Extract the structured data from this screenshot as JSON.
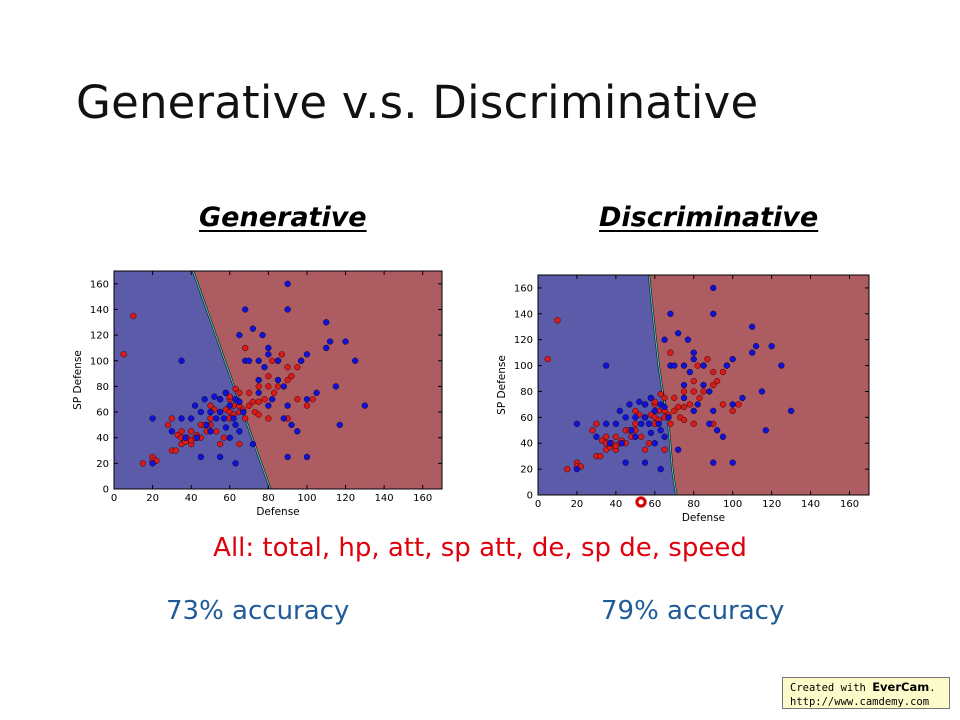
{
  "slide": {
    "title": "Generative v.s. Discriminative",
    "left_heading": "Generative",
    "right_heading": "Discriminative",
    "features_line": "All: total, hp, att, sp att, de, sp de, speed",
    "left_accuracy": "73% accuracy",
    "right_accuracy": "79% accuracy"
  },
  "watermark": {
    "prefix": "Created with ",
    "brand": "EverCam",
    "suffix": ".",
    "url": "http://www.camdemy.com"
  },
  "colors": {
    "class_red": "#d81b1b",
    "class_blue": "#1212d6",
    "region_blue": "#5b5baa",
    "region_red": "#ad5d61",
    "features_text": "#e0000c",
    "accuracy_text": "#1f5a99"
  },
  "shared_points": {
    "red": [
      [
        5,
        105
      ],
      [
        10,
        135
      ],
      [
        15,
        20
      ],
      [
        20,
        25
      ],
      [
        20,
        22
      ],
      [
        22,
        22
      ],
      [
        28,
        50
      ],
      [
        30,
        55
      ],
      [
        30,
        30
      ],
      [
        32,
        30
      ],
      [
        33,
        42
      ],
      [
        35,
        45
      ],
      [
        35,
        40
      ],
      [
        35,
        35
      ],
      [
        37,
        37
      ],
      [
        38,
        40
      ],
      [
        40,
        35
      ],
      [
        40,
        45
      ],
      [
        40,
        38
      ],
      [
        42,
        40
      ],
      [
        43,
        42
      ],
      [
        45,
        50
      ],
      [
        45,
        40
      ],
      [
        47,
        50
      ],
      [
        48,
        45
      ],
      [
        50,
        50
      ],
      [
        50,
        65
      ],
      [
        50,
        55
      ],
      [
        52,
        62
      ],
      [
        53,
        45
      ],
      [
        55,
        60
      ],
      [
        55,
        70
      ],
      [
        55,
        35
      ],
      [
        57,
        40
      ],
      [
        58,
        62
      ],
      [
        58,
        75
      ],
      [
        60,
        70
      ],
      [
        60,
        55
      ],
      [
        60,
        60
      ],
      [
        60,
        72
      ],
      [
        62,
        65
      ],
      [
        62,
        58
      ],
      [
        63,
        78
      ],
      [
        65,
        75
      ],
      [
        65,
        65
      ],
      [
        65,
        60
      ],
      [
        65,
        35
      ],
      [
        67,
        62
      ],
      [
        68,
        55
      ],
      [
        68,
        110
      ],
      [
        70,
        65
      ],
      [
        70,
        75
      ],
      [
        72,
        68
      ],
      [
        73,
        60
      ],
      [
        75,
        58
      ],
      [
        75,
        68
      ],
      [
        75,
        80
      ],
      [
        78,
        70
      ],
      [
        80,
        55
      ],
      [
        80,
        80
      ],
      [
        80,
        88
      ],
      [
        82,
        100
      ],
      [
        83,
        75
      ],
      [
        85,
        80
      ],
      [
        85,
        100
      ],
      [
        87,
        105
      ],
      [
        90,
        95
      ],
      [
        90,
        85
      ],
      [
        90,
        55
      ],
      [
        92,
        88
      ],
      [
        95,
        70
      ],
      [
        95,
        95
      ],
      [
        97,
        100
      ],
      [
        100,
        65
      ],
      [
        103,
        70
      ]
    ],
    "blue": [
      [
        20,
        55
      ],
      [
        20,
        20
      ],
      [
        30,
        45
      ],
      [
        35,
        100
      ],
      [
        35,
        55
      ],
      [
        37,
        40
      ],
      [
        40,
        55
      ],
      [
        42,
        65
      ],
      [
        43,
        40
      ],
      [
        45,
        25
      ],
      [
        45,
        60
      ],
      [
        47,
        70
      ],
      [
        48,
        50
      ],
      [
        50,
        60
      ],
      [
        50,
        45
      ],
      [
        52,
        72
      ],
      [
        53,
        55
      ],
      [
        55,
        25
      ],
      [
        55,
        60
      ],
      [
        55,
        70
      ],
      [
        57,
        55
      ],
      [
        58,
        48
      ],
      [
        58,
        75
      ],
      [
        60,
        40
      ],
      [
        60,
        65
      ],
      [
        62,
        55
      ],
      [
        63,
        50
      ],
      [
        63,
        70
      ],
      [
        63,
        20
      ],
      [
        65,
        120
      ],
      [
        65,
        45
      ],
      [
        65,
        68
      ],
      [
        67,
        60
      ],
      [
        68,
        140
      ],
      [
        68,
        100
      ],
      [
        70,
        100
      ],
      [
        72,
        125
      ],
      [
        72,
        35
      ],
      [
        75,
        75
      ],
      [
        75,
        100
      ],
      [
        75,
        85
      ],
      [
        77,
        120
      ],
      [
        78,
        95
      ],
      [
        80,
        65
      ],
      [
        80,
        110
      ],
      [
        80,
        105
      ],
      [
        82,
        70
      ],
      [
        85,
        85
      ],
      [
        85,
        100
      ],
      [
        88,
        55
      ],
      [
        88,
        80
      ],
      [
        90,
        160
      ],
      [
        90,
        140
      ],
      [
        90,
        65
      ],
      [
        90,
        25
      ],
      [
        92,
        50
      ],
      [
        95,
        45
      ],
      [
        97,
        100
      ],
      [
        100,
        105
      ],
      [
        100,
        25
      ],
      [
        100,
        70
      ],
      [
        105,
        75
      ],
      [
        110,
        130
      ],
      [
        110,
        110
      ],
      [
        112,
        115
      ],
      [
        115,
        80
      ],
      [
        117,
        50
      ],
      [
        120,
        115
      ],
      [
        125,
        100
      ],
      [
        130,
        65
      ]
    ]
  },
  "chart_data": [
    {
      "type": "scatter",
      "xlabel": "Defense",
      "ylabel": "SP Defense",
      "xlim": [
        0,
        170
      ],
      "ylim": [
        0,
        170
      ],
      "xticks": [
        "0",
        "20",
        "40",
        "60",
        "80",
        "100",
        "120",
        "140",
        "160"
      ],
      "yticks": [
        "0",
        "20",
        "40",
        "60",
        "80",
        "100",
        "120",
        "140",
        "160"
      ],
      "regions": {
        "left_color": "region_blue",
        "right_color": "region_red"
      },
      "boundary": [
        [
          41,
          170
        ],
        [
          81,
          0
        ]
      ]
    },
    {
      "type": "scatter",
      "xlabel": "Defense",
      "ylabel": "SP Defense",
      "xlim": [
        0,
        170
      ],
      "ylim": [
        0,
        170
      ],
      "xticks": [
        "0",
        "20",
        "40",
        "60",
        "80",
        "100",
        "120",
        "140",
        "160"
      ],
      "yticks": [
        "0",
        "20",
        "40",
        "60",
        "80",
        "100",
        "120",
        "140",
        "160"
      ],
      "regions": {
        "left_color": "region_blue",
        "right_color": "region_red"
      },
      "boundary": [
        [
          57,
          170
        ],
        [
          59,
          140
        ],
        [
          62,
          100
        ],
        [
          64,
          80
        ],
        [
          67,
          55
        ],
        [
          69,
          20
        ],
        [
          71,
          0
        ]
      ]
    }
  ]
}
